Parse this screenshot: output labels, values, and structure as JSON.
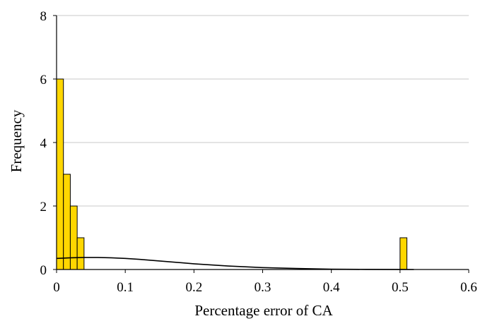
{
  "chart_data": {
    "type": "bar",
    "title": "",
    "xlabel": "Percentage error of CA",
    "ylabel": "Frequency",
    "xlim": [
      0,
      0.6
    ],
    "ylim": [
      0,
      8
    ],
    "x_ticks": [
      "0",
      "0.1",
      "0.2",
      "0.3",
      "0.4",
      "0.5",
      "0.6"
    ],
    "y_ticks": [
      "0",
      "2",
      "4",
      "6",
      "8"
    ],
    "grid": true,
    "bin_width": 0.01,
    "series": [
      {
        "type": "bar",
        "color": "#FFD700",
        "bins": [
          {
            "x0": 0.0,
            "x1": 0.01,
            "count": 6
          },
          {
            "x0": 0.01,
            "x1": 0.02,
            "count": 3
          },
          {
            "x0": 0.02,
            "x1": 0.03,
            "count": 2
          },
          {
            "x0": 0.03,
            "x1": 0.04,
            "count": 1
          },
          {
            "x0": 0.5,
            "x1": 0.51,
            "count": 1
          }
        ]
      },
      {
        "type": "line",
        "color": "#000000",
        "description_of_curve": "fitted normal density",
        "x": [
          0,
          0.02,
          0.04,
          0.06,
          0.08,
          0.1,
          0.12,
          0.15,
          0.2,
          0.25,
          0.3,
          0.35,
          0.4,
          0.45,
          0.5,
          0.52
        ],
        "y": [
          0.35,
          0.37,
          0.38,
          0.38,
          0.37,
          0.35,
          0.32,
          0.27,
          0.18,
          0.11,
          0.06,
          0.03,
          0.01,
          0.005,
          0.002,
          0.0
        ]
      }
    ]
  }
}
